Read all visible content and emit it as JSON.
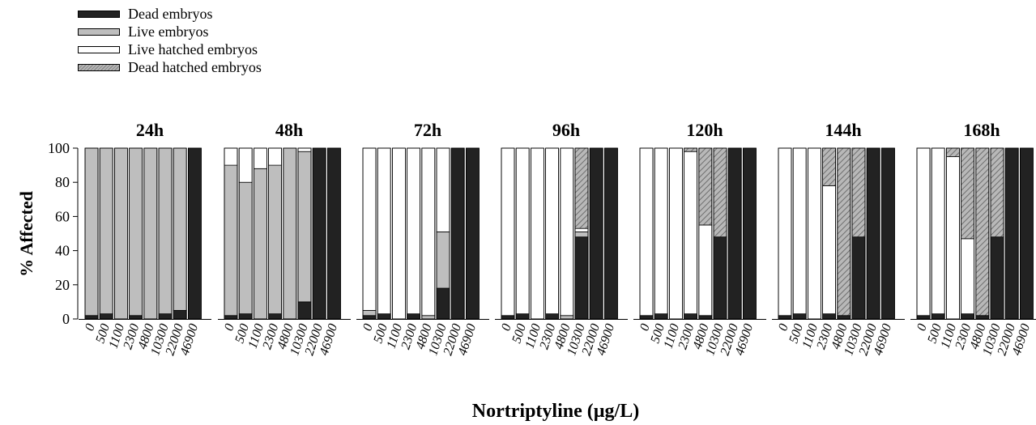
{
  "legend": {
    "dead": "Dead embryos",
    "live": "Live embryos",
    "live_hatched": "Live hatched embryos",
    "dead_hatched": "Dead hatched embryos"
  },
  "colors": {
    "dead": "#222222",
    "live": "#bebebe",
    "live_hatched": "#ffffff",
    "dead_hatched": "#9a9a9a"
  },
  "chart_data": {
    "type": "bar",
    "stacked": true,
    "xlabel": "Nortriptyline (µg/L)",
    "ylabel": "%  Affected",
    "ylim": [
      0,
      100
    ],
    "yticks": [
      0,
      20,
      40,
      60,
      80,
      100
    ],
    "categories": [
      "0",
      "500",
      "1100",
      "2300",
      "4800",
      "10300",
      "22000",
      "46900"
    ],
    "series_names": [
      "dead",
      "live",
      "live_hatched",
      "dead_hatched"
    ],
    "panels": [
      {
        "title": "24h",
        "dead": [
          2,
          3,
          0,
          2,
          0,
          3,
          5,
          100
        ],
        "live": [
          98,
          97,
          100,
          98,
          100,
          97,
          95,
          0
        ],
        "live_hatched": [
          0,
          0,
          0,
          0,
          0,
          0,
          0,
          0
        ],
        "dead_hatched": [
          0,
          0,
          0,
          0,
          0,
          0,
          0,
          0
        ]
      },
      {
        "title": "48h",
        "dead": [
          2,
          3,
          0,
          3,
          0,
          10,
          100,
          100
        ],
        "live": [
          88,
          77,
          88,
          87,
          100,
          88,
          0,
          0
        ],
        "live_hatched": [
          10,
          20,
          12,
          10,
          0,
          2,
          0,
          0
        ],
        "dead_hatched": [
          0,
          0,
          0,
          0,
          0,
          0,
          0,
          0
        ]
      },
      {
        "title": "72h",
        "dead": [
          2,
          3,
          0,
          3,
          0,
          18,
          100,
          100
        ],
        "live": [
          3,
          0,
          0,
          0,
          2,
          33,
          0,
          0
        ],
        "live_hatched": [
          95,
          97,
          100,
          97,
          98,
          49,
          0,
          0
        ],
        "dead_hatched": [
          0,
          0,
          0,
          0,
          0,
          0,
          0,
          0
        ]
      },
      {
        "title": "96h",
        "dead": [
          2,
          3,
          0,
          3,
          0,
          48,
          100,
          100
        ],
        "live": [
          0,
          0,
          0,
          0,
          2,
          3,
          0,
          0
        ],
        "live_hatched": [
          98,
          97,
          100,
          97,
          98,
          2,
          0,
          0
        ],
        "dead_hatched": [
          0,
          0,
          0,
          0,
          0,
          47,
          0,
          0
        ]
      },
      {
        "title": "120h",
        "dead": [
          2,
          3,
          0,
          3,
          2,
          48,
          100,
          100
        ],
        "live": [
          0,
          0,
          0,
          0,
          0,
          0,
          0,
          0
        ],
        "live_hatched": [
          98,
          97,
          100,
          95,
          53,
          0,
          0,
          0
        ],
        "dead_hatched": [
          0,
          0,
          0,
          2,
          45,
          52,
          0,
          0
        ]
      },
      {
        "title": "144h",
        "dead": [
          2,
          3,
          0,
          3,
          2,
          48,
          100,
          100
        ],
        "live": [
          0,
          0,
          0,
          0,
          0,
          0,
          0,
          0
        ],
        "live_hatched": [
          98,
          97,
          100,
          75,
          0,
          0,
          0,
          0
        ],
        "dead_hatched": [
          0,
          0,
          0,
          22,
          98,
          52,
          0,
          0
        ]
      },
      {
        "title": "168h",
        "dead": [
          2,
          3,
          0,
          3,
          2,
          48,
          100,
          100
        ],
        "live": [
          0,
          0,
          0,
          0,
          0,
          0,
          0,
          0
        ],
        "live_hatched": [
          98,
          97,
          95,
          44,
          0,
          0,
          0,
          0
        ],
        "dead_hatched": [
          0,
          0,
          5,
          53,
          98,
          52,
          0,
          0
        ]
      }
    ]
  }
}
